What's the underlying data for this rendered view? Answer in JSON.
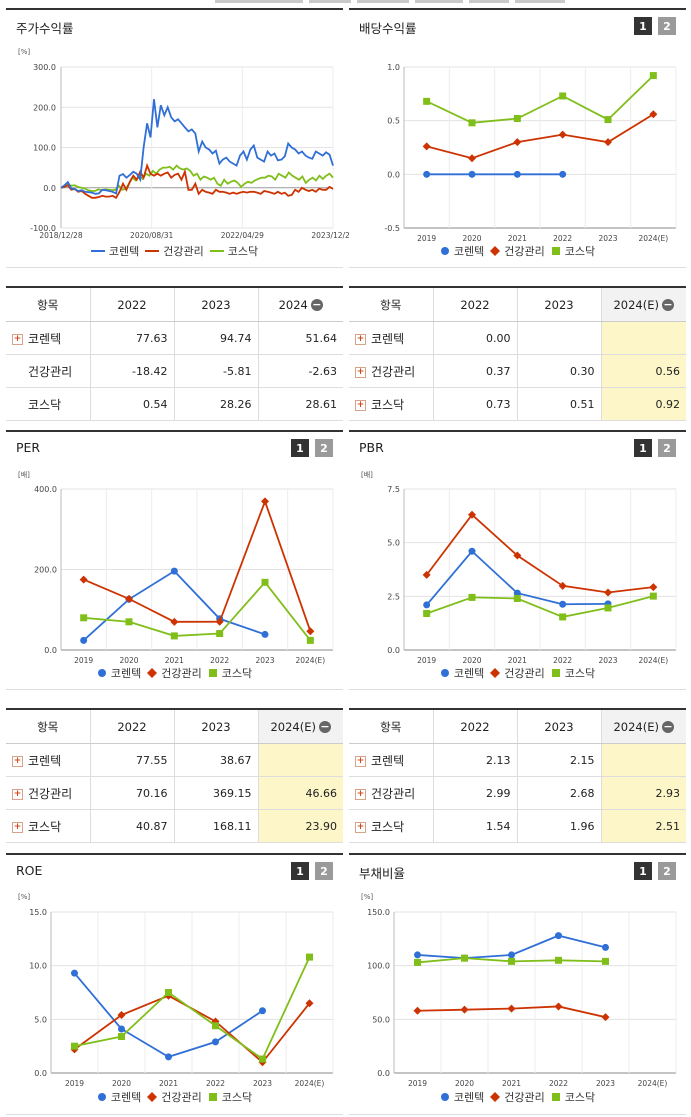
{
  "series_names": [
    "코렌텍",
    "건강관리",
    "코스닥"
  ],
  "colors": {
    "s1": "#2f6fd6",
    "s2": "#cc3300",
    "s3": "#80bf1a"
  },
  "panels": {
    "stock": {
      "title": "주가수익률",
      "unit": "[%]",
      "chart_data": {
        "type": "line",
        "title": "주가수익률",
        "x_ticks": [
          "2018/12/28",
          "2020/08/31",
          "2022/04/29",
          "2023/12/28"
        ],
        "y_ticks": [
          "300.0",
          "200.0",
          "100.0",
          "0.0",
          "-100.0"
        ],
        "ylim": [
          -100,
          300
        ],
        "series": [
          {
            "name": "코렌텍",
            "values": [
              0,
              6,
              14,
              -2,
              -3,
              -8,
              -6,
              -10,
              -11,
              -12,
              -15,
              -14,
              -5,
              -6,
              -8,
              -10,
              -14,
              30,
              34,
              25,
              32,
              40,
              35,
              20,
              100,
              160,
              125,
              220,
              150,
              205,
              180,
              200,
              175,
              165,
              170,
              160,
              150,
              140,
              145,
              135,
              90,
              115,
              100,
              95,
              85,
              92,
              60,
              70,
              75,
              65,
              60,
              55,
              80,
              90,
              70,
              95,
              105,
              75,
              70,
              65,
              90,
              80,
              85,
              68,
              70,
              78,
              110,
              100,
              95,
              85,
              90,
              80,
              75,
              72,
              90,
              85,
              80,
              88,
              82,
              55
            ]
          },
          {
            "name": "건강관리",
            "values": [
              0,
              2,
              6,
              -5,
              -3,
              -10,
              -8,
              -15,
              -20,
              -25,
              -25,
              -23,
              -20,
              -22,
              -22,
              -20,
              -25,
              -10,
              10,
              -5,
              15,
              30,
              20,
              40,
              25,
              55,
              35,
              30,
              35,
              30,
              35,
              38,
              25,
              32,
              35,
              20,
              40,
              -5,
              -5,
              10,
              -15,
              -5,
              -10,
              -12,
              -15,
              -5,
              -10,
              -10,
              -12,
              -15,
              -12,
              -15,
              -12,
              -10,
              -12,
              -10,
              -10,
              -12,
              -15,
              -8,
              -10,
              -12,
              -15,
              -10,
              -15,
              -12,
              -20,
              -18,
              -5,
              -10,
              0,
              -5,
              -8,
              -5,
              -10,
              -2,
              -5,
              -5,
              2,
              -3
            ]
          },
          {
            "name": "코스닥",
            "values": [
              0,
              3,
              8,
              5,
              6,
              2,
              0,
              -2,
              -6,
              -8,
              -8,
              -4,
              -6,
              -4,
              -5,
              -6,
              -5,
              5,
              -5,
              -3,
              10,
              25,
              18,
              30,
              22,
              35,
              30,
              42,
              35,
              45,
              50,
              50,
              52,
              45,
              55,
              48,
              45,
              48,
              42,
              30,
              35,
              20,
              28,
              25,
              20,
              25,
              10,
              5,
              20,
              10,
              15,
              18,
              12,
              2,
              10,
              15,
              12,
              18,
              22,
              25,
              25,
              30,
              28,
              20,
              35,
              30,
              25,
              38,
              30,
              25,
              20,
              28,
              12,
              20,
              25,
              18,
              30,
              22,
              30,
              35,
              25
            ]
          }
        ]
      },
      "legend": [
        "코렌텍",
        "건강관리",
        "코스닥"
      ]
    },
    "dividend": {
      "title": "배당수익률",
      "btn1": "1",
      "btn2": "2",
      "unit": "",
      "chart_data": {
        "type": "line",
        "title": "배당수익률",
        "categories": [
          "2019",
          "2020",
          "2021",
          "2022",
          "2023",
          "2024(E)"
        ],
        "y_ticks": [
          "1.0",
          "0.5",
          "0.0",
          "-0.5"
        ],
        "ylim": [
          -0.5,
          1.0
        ],
        "series": [
          {
            "name": "코렌텍",
            "values": [
              0.0,
              0.0,
              0.0,
              0.0,
              null,
              null
            ]
          },
          {
            "name": "건강관리",
            "values": [
              0.26,
              0.15,
              0.3,
              0.37,
              0.3,
              0.56
            ]
          },
          {
            "name": "코스닥",
            "values": [
              0.68,
              0.48,
              0.52,
              0.73,
              0.51,
              0.92
            ]
          }
        ]
      },
      "legend": [
        "코렌텍",
        "건강관리",
        "코스닥"
      ]
    },
    "per": {
      "title": "PER",
      "btn1": "1",
      "btn2": "2",
      "unit": "[배]",
      "chart_data": {
        "type": "line",
        "title": "PER",
        "categories": [
          "2019",
          "2020",
          "2021",
          "2022",
          "2023",
          "2024(E)"
        ],
        "y_ticks": [
          "400.0",
          "200.0",
          "0.0"
        ],
        "ylim": [
          0,
          400
        ],
        "series": [
          {
            "name": "코렌텍",
            "values": [
              24,
              126,
              196,
              77.55,
              38.67,
              null
            ]
          },
          {
            "name": "건강관리",
            "values": [
              175,
              127,
              70,
              70.16,
              369.15,
              46.66
            ]
          },
          {
            "name": "코스닥",
            "values": [
              80,
              70,
              35,
              40.87,
              168.11,
              23.9
            ]
          }
        ]
      },
      "legend": [
        "코렌텍",
        "건강관리",
        "코스닥"
      ]
    },
    "pbr": {
      "title": "PBR",
      "btn1": "1",
      "btn2": "2",
      "unit": "[배]",
      "chart_data": {
        "type": "line",
        "title": "PBR",
        "categories": [
          "2019",
          "2020",
          "2021",
          "2022",
          "2023",
          "2024(E)"
        ],
        "y_ticks": [
          "7.5",
          "5.0",
          "2.5",
          "0.0"
        ],
        "ylim": [
          0,
          7.5
        ],
        "series": [
          {
            "name": "코렌텍",
            "values": [
              2.1,
              4.6,
              2.65,
              2.13,
              2.15,
              null
            ]
          },
          {
            "name": "건강관리",
            "values": [
              3.5,
              6.3,
              4.4,
              2.99,
              2.68,
              2.93
            ]
          },
          {
            "name": "코스닥",
            "values": [
              1.7,
              2.45,
              2.4,
              1.54,
              1.96,
              2.51
            ]
          }
        ]
      },
      "legend": [
        "코렌텍",
        "건강관리",
        "코스닥"
      ]
    },
    "roe": {
      "title": "ROE",
      "btn1": "1",
      "btn2": "2",
      "unit": "[%]",
      "chart_data": {
        "type": "line",
        "title": "ROE",
        "categories": [
          "2019",
          "2020",
          "2021",
          "2022",
          "2023",
          "2024(E)"
        ],
        "y_ticks": [
          "15.0",
          "10.0",
          "5.0",
          "0.0"
        ],
        "ylim": [
          0,
          15
        ],
        "series": [
          {
            "name": "코렌텍",
            "values": [
              9.3,
              4.1,
              1.5,
              2.9,
              5.8,
              null
            ]
          },
          {
            "name": "건강관리",
            "values": [
              2.2,
              5.4,
              7.2,
              4.8,
              1.0,
              6.5
            ]
          },
          {
            "name": "코스닥",
            "values": [
              2.5,
              3.4,
              7.5,
              4.4,
              1.3,
              10.8
            ]
          }
        ]
      },
      "legend": [
        "코렌텍",
        "건강관리",
        "코스닥"
      ]
    },
    "debt": {
      "title": "부채비율",
      "btn1": "1",
      "btn2": "2",
      "unit": "[%]",
      "chart_data": {
        "type": "line",
        "title": "부채비율",
        "categories": [
          "2019",
          "2020",
          "2021",
          "2022",
          "2023",
          "2024(E)"
        ],
        "y_ticks": [
          "150.0",
          "100.0",
          "50.0",
          "0.0"
        ],
        "ylim": [
          0,
          150
        ],
        "series": [
          {
            "name": "코렌텍",
            "values": [
              110,
              107,
              110,
              128,
              117,
              null
            ]
          },
          {
            "name": "건강관리",
            "values": [
              58,
              59,
              60,
              62,
              52,
              null
            ]
          },
          {
            "name": "코스닥",
            "values": [
              103,
              107,
              104,
              105,
              104,
              null
            ]
          }
        ]
      },
      "legend": [
        "코렌텍",
        "건강관리",
        "코스닥"
      ]
    }
  },
  "tables": {
    "stock": {
      "headers": [
        "항목",
        "2022",
        "2023",
        "2024"
      ],
      "rows": [
        {
          "name": "코렌텍",
          "plus": true,
          "cells": [
            "77.63",
            "94.74",
            "51.64"
          ]
        },
        {
          "name": "건강관리",
          "plus": false,
          "cells": [
            "-18.42",
            "-5.81",
            "-2.63"
          ]
        },
        {
          "name": "코스닥",
          "plus": false,
          "cells": [
            "0.54",
            "28.26",
            "28.61"
          ]
        }
      ]
    },
    "dividend": {
      "headers": [
        "항목",
        "2022",
        "2023",
        "2024(E)"
      ],
      "rows": [
        {
          "name": "코렌텍",
          "plus": true,
          "cells": [
            "0.00",
            "",
            ""
          ]
        },
        {
          "name": "건강관리",
          "plus": true,
          "cells": [
            "0.37",
            "0.30",
            "0.56"
          ]
        },
        {
          "name": "코스닥",
          "plus": true,
          "cells": [
            "0.73",
            "0.51",
            "0.92"
          ]
        }
      ]
    },
    "per": {
      "headers": [
        "항목",
        "2022",
        "2023",
        "2024(E)"
      ],
      "rows": [
        {
          "name": "코렌텍",
          "plus": true,
          "cells": [
            "77.55",
            "38.67",
            ""
          ]
        },
        {
          "name": "건강관리",
          "plus": true,
          "cells": [
            "70.16",
            "369.15",
            "46.66"
          ]
        },
        {
          "name": "코스닥",
          "plus": true,
          "cells": [
            "40.87",
            "168.11",
            "23.90"
          ]
        }
      ]
    },
    "pbr": {
      "headers": [
        "항목",
        "2022",
        "2023",
        "2024(E)"
      ],
      "rows": [
        {
          "name": "코렌텍",
          "plus": true,
          "cells": [
            "2.13",
            "2.15",
            ""
          ]
        },
        {
          "name": "건강관리",
          "plus": true,
          "cells": [
            "2.99",
            "2.68",
            "2.93"
          ]
        },
        {
          "name": "코스닥",
          "plus": true,
          "cells": [
            "1.54",
            "1.96",
            "2.51"
          ]
        }
      ]
    }
  }
}
